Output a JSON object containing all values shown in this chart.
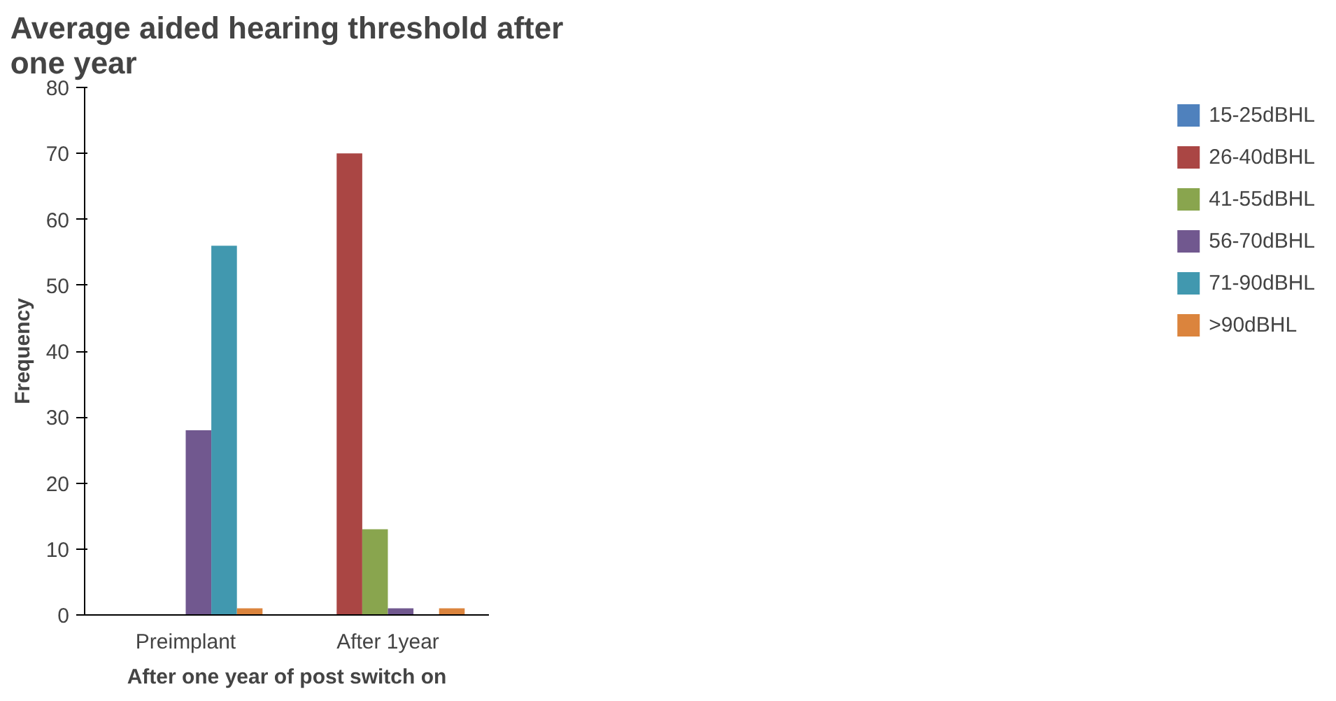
{
  "chart_data": {
    "type": "bar",
    "title": "Average aided hearing threshold after one year",
    "xlabel": "After one year of post switch on",
    "ylabel": "Frequency",
    "categories": [
      "Preimplant",
      "After 1year"
    ],
    "series": [
      {
        "name": "15-25dBHL",
        "color": "#4f81bd",
        "values": [
          0,
          0
        ]
      },
      {
        "name": "26-40dBHL",
        "color": "#aa4644",
        "values": [
          0,
          70
        ]
      },
      {
        "name": "41-55dBHL",
        "color": "#89a54e",
        "values": [
          0,
          13
        ]
      },
      {
        "name": "56-70dBHL",
        "color": "#71588f",
        "values": [
          28,
          1
        ]
      },
      {
        "name": "71-90dBHL",
        "color": "#4198af",
        "values": [
          56,
          0
        ]
      },
      {
        "name": ">90dBHL",
        "color": "#db843d",
        "values": [
          1,
          1
        ]
      }
    ],
    "ylim": [
      0,
      80
    ],
    "yticks": [
      0,
      10,
      20,
      30,
      40,
      50,
      60,
      70,
      80
    ],
    "grid": false,
    "legend": "right"
  }
}
